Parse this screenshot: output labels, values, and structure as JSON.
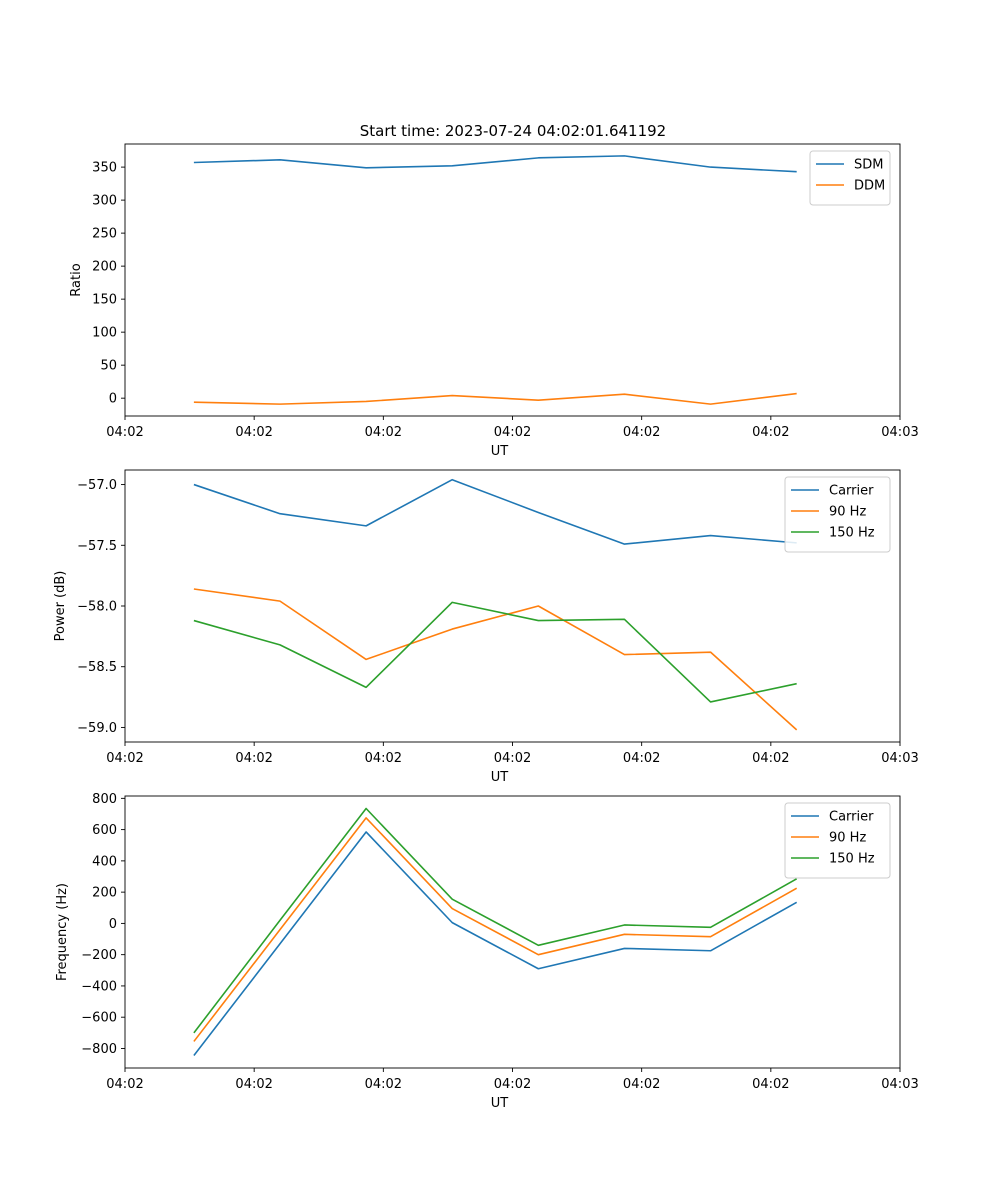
{
  "figure": {
    "title": "Start time: 2023-07-24 04:02:01.641192"
  },
  "colors": {
    "blue": "#1f77b4",
    "orange": "#ff7f0e",
    "green": "#2ca02c"
  },
  "chart_data": [
    {
      "type": "line",
      "title": "Start time: 2023-07-24 04:02:01.641192",
      "xlabel": "UT",
      "ylabel": "Ratio",
      "x": [
        1,
        2,
        3,
        4,
        5,
        6,
        7,
        8
      ],
      "xlim": [
        0.2,
        9.2
      ],
      "xticks": [
        0.2,
        1.7,
        3.2,
        4.7,
        6.2,
        7.7,
        9.2
      ],
      "xtick_labels": [
        "04:02",
        "04:02",
        "04:02",
        "04:02",
        "04:02",
        "04:02",
        "04:03"
      ],
      "ylim": [
        -27,
        385
      ],
      "yticks": [
        0,
        50,
        100,
        150,
        200,
        250,
        300,
        350
      ],
      "ytick_labels": [
        "0",
        "50",
        "100",
        "150",
        "200",
        "250",
        "300",
        "350"
      ],
      "legend_position": "top-right",
      "series": [
        {
          "name": "SDM",
          "color": "#1f77b4",
          "values": [
            357,
            361,
            349,
            352,
            364,
            367,
            350,
            343
          ]
        },
        {
          "name": "DDM",
          "color": "#ff7f0e",
          "values": [
            -6,
            -9,
            -5,
            4,
            -3,
            6,
            -9,
            7
          ]
        }
      ]
    },
    {
      "type": "line",
      "title": "",
      "xlabel": "UT",
      "ylabel": "Power (dB)",
      "x": [
        1,
        2,
        3,
        4,
        5,
        6,
        7,
        8
      ],
      "xlim": [
        0.2,
        9.2
      ],
      "xticks": [
        0.2,
        1.7,
        3.2,
        4.7,
        6.2,
        7.7,
        9.2
      ],
      "xtick_labels": [
        "04:02",
        "04:02",
        "04:02",
        "04:02",
        "04:02",
        "04:02",
        "04:03"
      ],
      "ylim": [
        -59.12,
        -56.88
      ],
      "yticks": [
        -59.0,
        -58.5,
        -58.0,
        -57.5,
        -57.0
      ],
      "ytick_labels": [
        "−59.0",
        "−58.5",
        "−58.0",
        "−57.5",
        "−57.0"
      ],
      "legend_position": "top-right",
      "series": [
        {
          "name": "Carrier",
          "color": "#1f77b4",
          "values": [
            -57.0,
            -57.24,
            -57.34,
            -56.96,
            -57.23,
            -57.49,
            -57.42,
            -57.48
          ]
        },
        {
          "name": "90 Hz",
          "color": "#ff7f0e",
          "values": [
            -57.86,
            -57.96,
            -58.44,
            -58.19,
            -58.0,
            -58.4,
            -58.38,
            -59.02
          ]
        },
        {
          "name": "150 Hz",
          "color": "#2ca02c",
          "values": [
            -58.12,
            -58.32,
            -58.67,
            -57.97,
            -58.12,
            -58.11,
            -58.79,
            -58.64
          ]
        }
      ]
    },
    {
      "type": "line",
      "title": "",
      "xlabel": "UT",
      "ylabel": "Frequency (Hz)",
      "x": [
        1,
        2,
        3,
        4,
        5,
        6,
        7,
        8
      ],
      "xlim": [
        0.2,
        9.2
      ],
      "xticks": [
        0.2,
        1.7,
        3.2,
        4.7,
        6.2,
        7.7,
        9.2
      ],
      "xtick_labels": [
        "04:02",
        "04:02",
        "04:02",
        "04:02",
        "04:02",
        "04:02",
        "04:03"
      ],
      "ylim": [
        -925,
        815
      ],
      "yticks": [
        -800,
        -600,
        -400,
        -200,
        0,
        200,
        400,
        600,
        800
      ],
      "ytick_labels": [
        "−800",
        "−600",
        "−400",
        "−200",
        "0",
        "200",
        "400",
        "600",
        "800"
      ],
      "legend_position": "top-right",
      "series": [
        {
          "name": "Carrier",
          "color": "#1f77b4",
          "values": [
            -845,
            -130,
            585,
            5,
            -290,
            -160,
            -175,
            135
          ]
        },
        {
          "name": "90 Hz",
          "color": "#ff7f0e",
          "values": [
            -755,
            -40,
            675,
            95,
            -200,
            -70,
            -85,
            225
          ]
        },
        {
          "name": "150 Hz",
          "color": "#2ca02c",
          "values": [
            -700,
            20,
            735,
            155,
            -140,
            -10,
            -25,
            285
          ]
        }
      ]
    }
  ]
}
